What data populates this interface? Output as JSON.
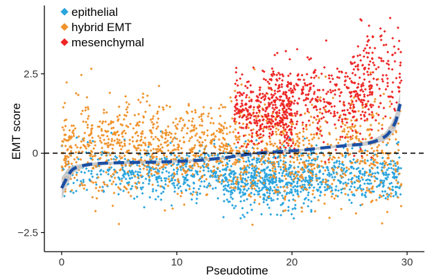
{
  "chart_data": {
    "type": "scatter",
    "xlabel": "Pseudotime",
    "ylabel": "EMT score",
    "xlim": [
      -1.5,
      31.5
    ],
    "ylim": [
      -3.1,
      4.65
    ],
    "x_ticks": [
      0,
      10,
      20,
      30
    ],
    "x_tick_labels": [
      "0",
      "10",
      "20",
      "30"
    ],
    "y_ticks": [
      -2.5,
      0,
      2.5
    ],
    "y_tick_labels": [
      "−2.5",
      "0",
      "2.5"
    ],
    "grid": false,
    "reference_line": {
      "y": 0,
      "style": "dashed",
      "color": "#000000"
    },
    "legend": {
      "position": "top-left",
      "entries": [
        {
          "label": "epithelial",
          "color": "#2aa4dd"
        },
        {
          "label": "hybrid EMT",
          "color": "#f0922b"
        },
        {
          "label": "mesenchymal",
          "color": "#ee2525"
        }
      ]
    },
    "series": [
      {
        "name": "epithelial",
        "color": "#2aa4dd",
        "density_profile": [
          {
            "x_range": [
              0,
              5
            ],
            "y_mean": -0.55,
            "y_sd": 0.4,
            "relative_density": 0.5
          },
          {
            "x_range": [
              5,
              14
            ],
            "y_mean": -0.65,
            "y_sd": 0.4,
            "relative_density": 0.9
          },
          {
            "x_range": [
              14,
              22
            ],
            "y_mean": -0.85,
            "y_sd": 0.45,
            "relative_density": 1.8
          },
          {
            "x_range": [
              22,
              29.5
            ],
            "y_mean": -0.7,
            "y_sd": 0.4,
            "relative_density": 1.0
          }
        ]
      },
      {
        "name": "hybrid EMT",
        "color": "#f0922b",
        "density_profile": [
          {
            "x_range": [
              0,
              14
            ],
            "y_mean": 0.15,
            "y_sd": 0.7,
            "relative_density": 1.3
          },
          {
            "x_range": [
              14,
              22
            ],
            "y_mean": 0.1,
            "y_sd": 0.8,
            "relative_density": 1.3
          },
          {
            "x_range": [
              22,
              29.5
            ],
            "y_mean": 0.1,
            "y_sd": 0.85,
            "relative_density": 1.0
          }
        ]
      },
      {
        "name": "mesenchymal",
        "color": "#ee2525",
        "density_profile": [
          {
            "x_range": [
              15,
              20
            ],
            "y_mean": 1.3,
            "y_sd": 0.5,
            "relative_density": 1.6
          },
          {
            "x_range": [
              18,
              27
            ],
            "y_mean": 1.6,
            "y_sd": 0.7,
            "relative_density": 1.0
          },
          {
            "x_range": [
              25,
              29.5
            ],
            "y_mean": 2.4,
            "y_sd": 0.75,
            "relative_density": 0.8
          }
        ]
      }
    ],
    "trend_line": {
      "style": "dashed",
      "color": "#1c4fa3",
      "band_color": "#c4c4c4",
      "x": [
        0,
        0.5,
        1,
        2,
        3,
        5,
        8,
        10,
        12,
        14,
        15,
        17,
        19,
        21,
        23,
        25,
        26,
        27,
        28,
        28.5,
        29,
        29.4
      ],
      "y": [
        -1.1,
        -0.75,
        -0.5,
        -0.38,
        -0.33,
        -0.3,
        -0.28,
        -0.26,
        -0.22,
        -0.15,
        -0.1,
        0.0,
        0.05,
        0.1,
        0.18,
        0.25,
        0.28,
        0.35,
        0.5,
        0.68,
        1.0,
        1.55
      ],
      "band_halfwidth": [
        0.35,
        0.25,
        0.12,
        0.06,
        0.05,
        0.04,
        0.04,
        0.04,
        0.04,
        0.04,
        0.04,
        0.04,
        0.04,
        0.04,
        0.04,
        0.05,
        0.06,
        0.08,
        0.12,
        0.18,
        0.25,
        0.35
      ]
    }
  }
}
